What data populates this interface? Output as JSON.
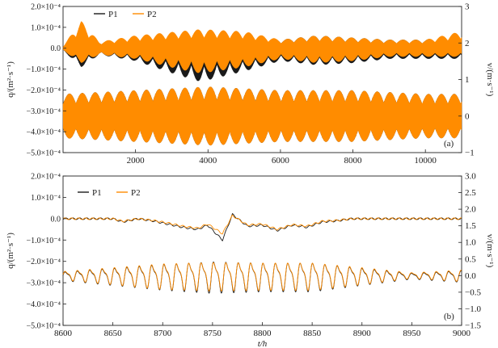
{
  "chart_data": [
    {
      "panel_label": "(a)",
      "type": "line",
      "x_ticks": [
        2000,
        4000,
        6000,
        8000,
        10000
      ],
      "x_tick_labels": [
        "2000",
        "4000",
        "6000",
        "8000",
        "10000"
      ],
      "xlim": [
        0,
        11000
      ],
      "ylim_left": [
        -0.0005,
        0.0002
      ],
      "y_left_ticks": [
        0.0002,
        0.0001,
        0,
        -0.0001,
        -0.0002,
        -0.0003,
        -0.0004,
        -0.0005
      ],
      "y_left_tick_labels": [
        "2.0×10⁻⁴",
        "1.0×10⁻⁴",
        "0.0",
        "−1.0×10⁻⁴",
        "−2.0×10⁻⁴",
        "−3.0×10⁻⁴",
        "−4.0×10⁻⁴",
        "−5.0×10⁻⁴"
      ],
      "ylim_right": [
        -1,
        3
      ],
      "y_right_ticks": [
        3,
        2,
        1,
        0,
        -1
      ],
      "y_right_tick_labels": [
        "3",
        "2",
        "1",
        "0",
        "−1"
      ],
      "ylabel_left": "q/(m²·s⁻¹)",
      "ylabel_right": "v/(m·s⁻¹)",
      "legend": {
        "placement": "top-left",
        "entries": [
          "P1",
          "P2"
        ]
      },
      "series": [
        {
          "name": "P1",
          "color": "#1a1a1a",
          "axis": "left",
          "quantity": "q",
          "kind": "tidal",
          "description_points": {
            "x": [
              0,
              500,
              1000,
              2000,
              3200,
              3800,
              5000,
              6000,
              7000,
              8000,
              9000,
              10000,
              11000
            ],
            "envelope_max": [
              1e-05,
              8e-05,
              3e-05,
              5e-05,
              7e-05,
              8e-05,
              7e-05,
              4e-05,
              6e-05,
              5e-05,
              4e-05,
              4e-05,
              7e-05
            ],
            "envelope_min": [
              -1e-05,
              -9e-05,
              -3e-05,
              -6e-05,
              -0.00013,
              -0.00016,
              -0.00011,
              -6e-05,
              -8e-05,
              -7e-05,
              -5e-05,
              -5e-05,
              -5e-05
            ]
          }
        },
        {
          "name": "P2",
          "color": "#ff8c00",
          "axis": "left",
          "quantity": "q",
          "kind": "tidal",
          "description_points": {
            "x": [
              0,
              500,
              1000,
              2000,
              3200,
              3800,
              5000,
              6000,
              7000,
              8000,
              9000,
              10000,
              11000
            ],
            "envelope_max": [
              1e-05,
              0.00013,
              3e-05,
              6e-05,
              8e-05,
              9e-05,
              8e-05,
              4e-05,
              6e-05,
              5e-05,
              4e-05,
              4e-05,
              8e-05
            ],
            "envelope_min": [
              -1e-05,
              -7e-05,
              -3e-05,
              -5e-05,
              -0.0001,
              -0.00012,
              -9e-05,
              -5e-05,
              -7e-05,
              -6e-05,
              -4e-05,
              -4e-05,
              -4e-05
            ]
          }
        },
        {
          "name": "P1",
          "color": "#1a1a1a",
          "axis": "right",
          "quantity": "v",
          "kind": "tidal-velocity",
          "description_points": {
            "x": [
              0,
              2000,
              4000,
              6000,
              8000,
              10000,
              11000
            ],
            "envelope_max": [
              0.6,
              0.7,
              0.8,
              0.7,
              0.7,
              0.6,
              0.6
            ],
            "envelope_min": [
              -0.6,
              -0.7,
              -0.8,
              -0.7,
              -0.7,
              -0.6,
              -0.6
            ]
          }
        },
        {
          "name": "P2",
          "color": "#ff8c00",
          "axis": "right",
          "quantity": "v",
          "kind": "tidal-velocity",
          "description_points": {
            "x": [
              0,
              2000,
              4000,
              6000,
              8000,
              10000,
              11000
            ],
            "envelope_max": [
              0.6,
              0.7,
              0.8,
              0.7,
              0.7,
              0.6,
              0.6
            ],
            "envelope_min": [
              -0.6,
              -0.7,
              -0.8,
              -0.7,
              -0.7,
              -0.6,
              -0.6
            ]
          }
        }
      ]
    },
    {
      "panel_label": "(b)",
      "type": "line",
      "x_ticks": [
        8600,
        8650,
        8700,
        8750,
        8800,
        8850,
        8900,
        8950,
        9000
      ],
      "x_tick_labels": [
        "8600",
        "8650",
        "8700",
        "8750",
        "8800",
        "8850",
        "8900",
        "8950",
        "9000"
      ],
      "xlim": [
        8600,
        9000
      ],
      "xlabel": "t/h",
      "ylim_left": [
        -0.0005,
        0.0002
      ],
      "y_left_ticks": [
        0.0002,
        0.0001,
        0,
        -0.0001,
        -0.0002,
        -0.0003,
        -0.0004,
        -0.0005
      ],
      "y_left_tick_labels": [
        "2.0×10⁻⁴",
        "1.0×10⁻⁴",
        "0.0",
        "−1.0×10⁻⁴",
        "−2.0×10⁻⁴",
        "−3.0×10⁻⁴",
        "−4.0×10⁻⁴",
        "−5.0×10⁻⁴"
      ],
      "ylim_right": [
        -1.5,
        3.0
      ],
      "y_right_ticks": [
        3.0,
        2.5,
        2.0,
        1.5,
        1.0,
        0.5,
        0.0,
        -0.5,
        -1.0,
        -1.5
      ],
      "y_right_tick_labels": [
        "3.0",
        "2.5",
        "2.0",
        "1.5",
        "1.0",
        "0.5",
        "0.0",
        "−0.5",
        "−1.0",
        "−1.5"
      ],
      "ylabel_left": "q/(m²·s⁻¹)",
      "ylabel_right": "v/(m·s⁻¹)",
      "legend": {
        "placement": "top-left",
        "entries": [
          "P1",
          "P2"
        ]
      },
      "series": [
        {
          "name": "P1",
          "color": "#1a1a1a",
          "axis": "left",
          "quantity": "q",
          "x": [
            8600,
            8650,
            8660,
            8675,
            8690,
            8705,
            8720,
            8735,
            8745,
            8760,
            8770,
            8785,
            8800,
            8815,
            8830,
            8845,
            8860,
            8875,
            8890,
            8950,
            9000
          ],
          "y": [
            0,
            0,
            -1.5e-05,
            0,
            -1e-05,
            -2.5e-05,
            -4e-05,
            -5e-05,
            -3e-05,
            -0.0001,
            2e-05,
            -3.5e-05,
            -3e-05,
            -5.5e-05,
            -3e-05,
            -4e-05,
            -1.5e-05,
            -1e-05,
            0,
            0,
            0
          ]
        },
        {
          "name": "P2",
          "color": "#ff8c00",
          "axis": "left",
          "quantity": "q",
          "x": [
            8600,
            8650,
            8660,
            8675,
            8690,
            8705,
            8720,
            8735,
            8745,
            8760,
            8770,
            8785,
            8800,
            8815,
            8830,
            8845,
            8860,
            8875,
            8890,
            8950,
            9000
          ],
          "y": [
            0,
            0,
            -1.2e-05,
            0,
            -8e-06,
            -2e-05,
            -3.5e-05,
            -4.5e-05,
            -2.5e-05,
            -7e-05,
            1.5e-05,
            -3e-05,
            -2.5e-05,
            -5e-05,
            -2.8e-05,
            -3.5e-05,
            -1.2e-05,
            -8e-06,
            0,
            0,
            0
          ]
        },
        {
          "name": "P1",
          "color": "#1a1a1a",
          "axis": "right",
          "quantity": "v",
          "kind": "tidal-velocity",
          "amplitude_by_x": {
            "x": [
              8600,
              8650,
              8700,
              8750,
              8800,
              8850,
              8900,
              8950,
              9000
            ],
            "amplitude": [
              0.15,
              0.3,
              0.45,
              0.55,
              0.5,
              0.5,
              0.3,
              0.1,
              0.2
            ]
          },
          "period_h": 12.42
        },
        {
          "name": "P2",
          "color": "#ff8c00",
          "axis": "right",
          "quantity": "v",
          "kind": "tidal-velocity",
          "amplitude_by_x": {
            "x": [
              8600,
              8650,
              8700,
              8750,
              8800,
              8850,
              8900,
              8950,
              9000
            ],
            "amplitude": [
              0.15,
              0.3,
              0.45,
              0.5,
              0.48,
              0.48,
              0.3,
              0.1,
              0.2
            ]
          },
          "period_h": 12.42
        }
      ]
    }
  ]
}
